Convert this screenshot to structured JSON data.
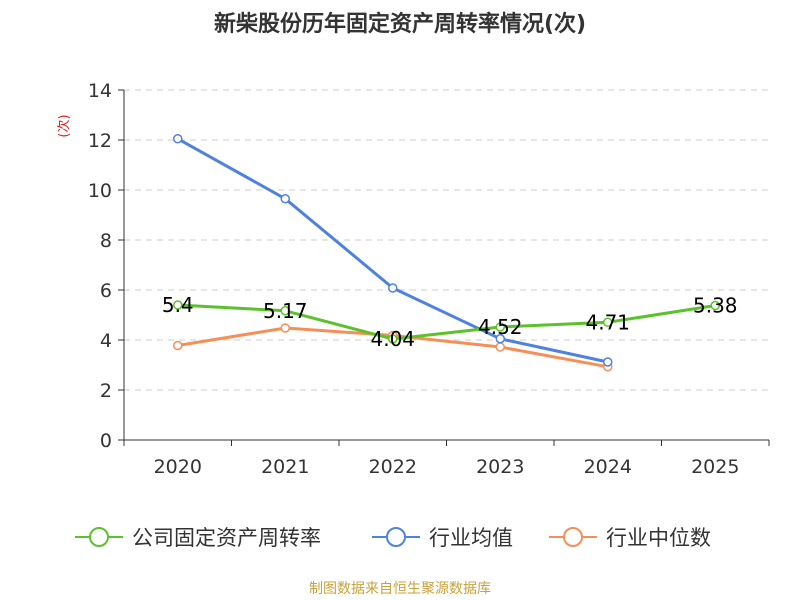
{
  "chart_data": {
    "type": "line",
    "title": "新柴股份历年固定资产周转率情况(次)",
    "ylabel": "(次)",
    "xlabel": "",
    "categories": [
      "2020",
      "2021",
      "2022",
      "2023",
      "2024",
      "2025"
    ],
    "ylim": [
      0,
      14
    ],
    "yticks": [
      0,
      2,
      4,
      6,
      8,
      10,
      12,
      14
    ],
    "grid": true,
    "legend_position": "bottom",
    "series": [
      {
        "name": "公司固定资产周转率",
        "color": "#5cc22b",
        "values": [
          5.4,
          5.17,
          4.04,
          4.52,
          4.71,
          5.38
        ],
        "labels": [
          "5.4",
          "5.17",
          "4.04",
          "4.52",
          "4.71",
          "5.38"
        ]
      },
      {
        "name": "行业均值",
        "color": "#4e82de",
        "values": [
          12.05,
          9.65,
          6.08,
          4.05,
          3.12,
          null
        ]
      },
      {
        "name": "行业中位数",
        "color": "#f58f58",
        "values": [
          3.78,
          4.48,
          4.18,
          3.72,
          2.93,
          null
        ]
      }
    ]
  },
  "ylabel_color": "#e02020",
  "source": "制图数据来自恒生聚源数据库"
}
